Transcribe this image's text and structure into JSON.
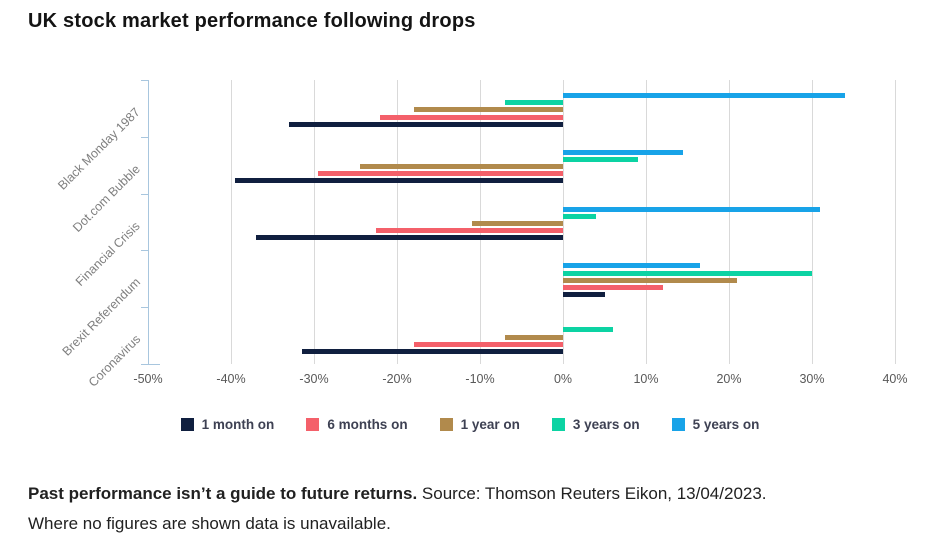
{
  "title": "UK stock market performance following drops",
  "chart_data": {
    "type": "bar",
    "orientation": "horizontal",
    "title": "UK stock market performance following drops",
    "categories": [
      "Black Monday 1987",
      "Dot.com Bubble",
      "Financial Crisis",
      "Brexit Referendum",
      "Coronavirus"
    ],
    "series": [
      {
        "name": "1 month on",
        "color": "#101f3f",
        "values": [
          -33,
          -39.5,
          -37,
          5,
          -31.5
        ]
      },
      {
        "name": "6 months on",
        "color": "#f4606a",
        "values": [
          -22,
          -29.5,
          -22.5,
          12,
          -18
        ]
      },
      {
        "name": "1 year on",
        "color": "#b18a4c",
        "values": [
          -18,
          -24.5,
          -11,
          21,
          -7
        ]
      },
      {
        "name": "3 years on",
        "color": "#0cd3a3",
        "values": [
          -7,
          9,
          4,
          30,
          6
        ]
      },
      {
        "name": "5 years on",
        "color": "#18a3e8",
        "values": [
          34,
          14.5,
          31,
          16.5,
          null
        ]
      }
    ],
    "x_tick_labels": [
      "-50%",
      "-40%",
      "-30%",
      "-20%",
      "-10%",
      "0%",
      "10%",
      "20%",
      "30%",
      "40%"
    ],
    "x_tick_values": [
      -50,
      -40,
      -30,
      -20,
      -10,
      0,
      10,
      20,
      30,
      40
    ],
    "xlim": [
      -50,
      40
    ],
    "grid": true,
    "legend_position": "bottom",
    "note": "Missing bars mean data unavailable"
  },
  "colors": {
    "gridline": "#d9d9d9",
    "axis_spine": "#a8c6de",
    "tick_text": "#595959",
    "category_text": "#7f7f7f",
    "legend_text": "#3e4153",
    "title_text": "#141414"
  },
  "footer": {
    "bold_text": "Past performance isn’t a guide to future returns.",
    "source_text": " Source: Thomson Reuters Eikon, 13/04/2023.",
    "line2": "Where no figures are shown data is unavailable."
  }
}
